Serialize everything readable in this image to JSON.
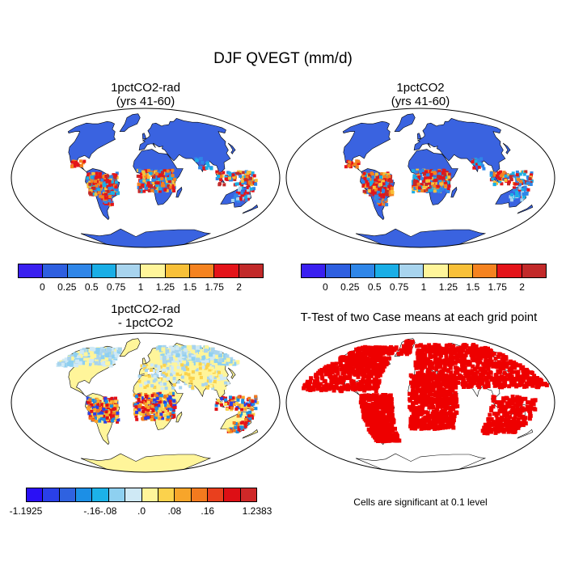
{
  "main_title": "DJF QVEGT (mm/d)",
  "panels": {
    "top_left": {
      "title_line1": "1pctCO2-rad",
      "title_line2": "(yrs 41-60)"
    },
    "top_right": {
      "title_line1": "1pctCO2",
      "title_line2": "(yrs 41-60)"
    },
    "bottom_left": {
      "title_line1": "1pctCO2-rad",
      "title_line2": "- 1pctCO2"
    },
    "bottom_right": {
      "title_line1": "T-Test of two Case means at each grid point"
    }
  },
  "colorbar_top": {
    "colors": [
      "#3a20f0",
      "#2e5fe0",
      "#2f86e8",
      "#1aaee6",
      "#a8d4ee",
      "#fff59a",
      "#f8c038",
      "#f58320",
      "#e4141a",
      "#c22a2a"
    ],
    "labels": [
      "0",
      "0.25",
      "0.5",
      "0.75",
      "1",
      "1.25",
      "1.5",
      "1.75",
      "2"
    ]
  },
  "colorbar_bottom": {
    "colors": [
      "#2a10f5",
      "#2a40e8",
      "#2f62e0",
      "#1c8fe6",
      "#1cb2e8",
      "#8ed0f0",
      "#cfe9f5",
      "#fff59a",
      "#fbd24c",
      "#f7a52a",
      "#f27a1e",
      "#e9401e",
      "#dd0f15",
      "#cf2828"
    ],
    "labels": [
      "-1.1925",
      "-.16",
      "-.08",
      ".0",
      ".08",
      ".16",
      "1.2383"
    ]
  },
  "significance_note": "Cells are significant at 0.1 level",
  "map_colors": {
    "ocean": "#ffffff",
    "top_land_low": "#3a63e0",
    "top_land_high": "#e4141a",
    "diff_base": "#fff59a",
    "diff_light_blue": "#a8d4ee",
    "ttest_sig": "#ee0000"
  }
}
